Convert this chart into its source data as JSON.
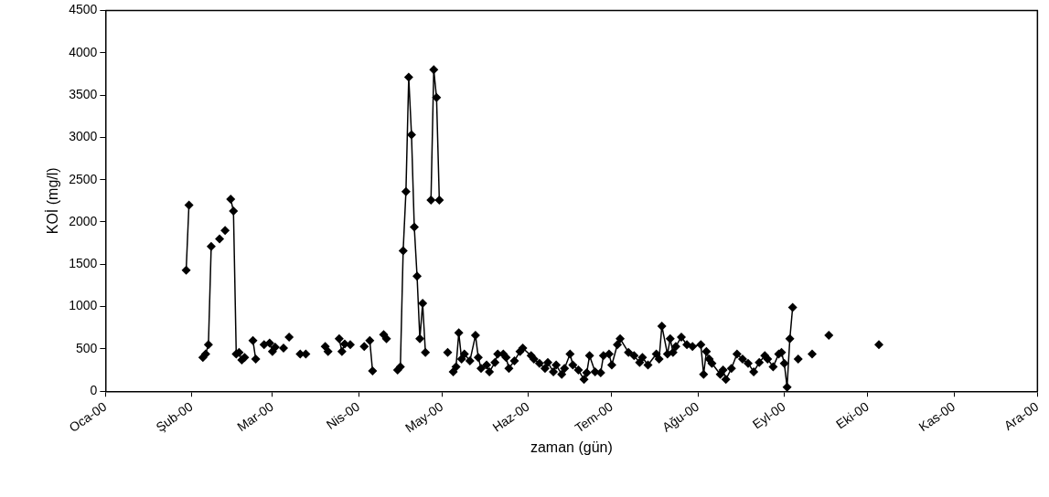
{
  "chart_data": {
    "type": "line",
    "xlabel": "zaman (gün)",
    "ylabel": "KOİ (mg/l)",
    "xlim": [
      "2000-01-01",
      "2000-12-01"
    ],
    "xticks": [
      {
        "value": "2000-01-01",
        "label": "Oca-00"
      },
      {
        "value": "2000-02-01",
        "label": "Şub-00"
      },
      {
        "value": "2000-03-01",
        "label": "Mar-00"
      },
      {
        "value": "2000-04-01",
        "label": "Nis-00"
      },
      {
        "value": "2000-05-01",
        "label": "May-00"
      },
      {
        "value": "2000-06-01",
        "label": "Haz-00"
      },
      {
        "value": "2000-07-01",
        "label": "Tem-00"
      },
      {
        "value": "2000-08-01",
        "label": "Ağu-00"
      },
      {
        "value": "2000-09-01",
        "label": "Eyl-00"
      },
      {
        "value": "2000-10-01",
        "label": "Eki-00"
      },
      {
        "value": "2000-11-01",
        "label": "Kas-00"
      },
      {
        "value": "2000-12-01",
        "label": "Ara-00"
      }
    ],
    "ylim": [
      0,
      4500
    ],
    "yticks": [
      0,
      500,
      1000,
      1500,
      2000,
      2500,
      3000,
      3500,
      4000,
      4500
    ],
    "grid": false,
    "legend": false,
    "marker": "diamond",
    "line_style": "solid",
    "series": [
      {
        "color": "#000000",
        "x": [
          "2000-01-30",
          "2000-01-31",
          "2000-02-02",
          "2000-02-05",
          "2000-02-06",
          "2000-02-07",
          "2000-02-08",
          "2000-02-09",
          "2000-02-11",
          "2000-02-12",
          "2000-02-13",
          "2000-02-14",
          "2000-02-15",
          "2000-02-16",
          "2000-02-17",
          "2000-02-18",
          "2000-02-19",
          "2000-02-20",
          "2000-02-21",
          "2000-02-23",
          "2000-02-24",
          "2000-02-25",
          "2000-02-27",
          "2000-02-28",
          "2000-02-29",
          "2000-03-01",
          "2000-03-02",
          "2000-03-03",
          "2000-03-05",
          "2000-03-06",
          "2000-03-07",
          "2000-03-09",
          "2000-03-11",
          "2000-03-12",
          "2000-03-13",
          "2000-03-15",
          "2000-03-20",
          "2000-03-21",
          "2000-03-23",
          "2000-03-25",
          "2000-03-26",
          "2000-03-27",
          "2000-03-28",
          "2000-03-29",
          "2000-03-31",
          "2000-04-03",
          "2000-04-04",
          "2000-04-05",
          "2000-04-06",
          "2000-04-08",
          "2000-04-10",
          "2000-04-11",
          "2000-04-13",
          "2000-04-15",
          "2000-04-16",
          "2000-04-17",
          "2000-04-18",
          "2000-04-19",
          "2000-04-20",
          "2000-04-21",
          "2000-04-22",
          "2000-04-23",
          "2000-04-24",
          "2000-04-25",
          "2000-04-26",
          "2000-04-27",
          "2000-04-28",
          "2000-04-29",
          "2000-04-30",
          "2000-05-01",
          "2000-05-03",
          "2000-05-04",
          "2000-05-05",
          "2000-05-06",
          "2000-05-07",
          "2000-05-08",
          "2000-05-09",
          "2000-05-11",
          "2000-05-13",
          "2000-05-14",
          "2000-05-15",
          "2000-05-17",
          "2000-05-18",
          "2000-05-20",
          "2000-05-21",
          "2000-05-23",
          "2000-05-24",
          "2000-05-25",
          "2000-05-27",
          "2000-05-29",
          "2000-05-30",
          "2000-06-02",
          "2000-06-03",
          "2000-06-05",
          "2000-06-07",
          "2000-06-08",
          "2000-06-10",
          "2000-06-11",
          "2000-06-13",
          "2000-06-14",
          "2000-06-16",
          "2000-06-17",
          "2000-06-19",
          "2000-06-21",
          "2000-06-22",
          "2000-06-23",
          "2000-06-25",
          "2000-06-27",
          "2000-06-28",
          "2000-06-30",
          "2000-07-01",
          "2000-07-03",
          "2000-07-04",
          "2000-07-07",
          "2000-07-09",
          "2000-07-11",
          "2000-07-12",
          "2000-07-14",
          "2000-07-17",
          "2000-07-18",
          "2000-07-19",
          "2000-07-21",
          "2000-07-22",
          "2000-07-23",
          "2000-07-24",
          "2000-07-26",
          "2000-07-28",
          "2000-07-30",
          "2000-08-02",
          "2000-08-03",
          "2000-08-04",
          "2000-08-05",
          "2000-08-06",
          "2000-08-09",
          "2000-08-10",
          "2000-08-11",
          "2000-08-13",
          "2000-08-15",
          "2000-08-17",
          "2000-08-19",
          "2000-08-21",
          "2000-08-23",
          "2000-08-25",
          "2000-08-26",
          "2000-08-28",
          "2000-08-30",
          "2000-08-31",
          "2000-09-01",
          "2000-09-02",
          "2000-09-03",
          "2000-09-04",
          "2000-09-05",
          "2000-09-06",
          "2000-09-08",
          "2000-09-11",
          "2000-09-14",
          "2000-09-17",
          "2000-09-25",
          "2000-10-05"
        ],
        "values": [
          1430,
          2200,
          null,
          400,
          440,
          550,
          1710,
          null,
          1800,
          null,
          1900,
          null,
          2270,
          2130,
          440,
          460,
          370,
          400,
          null,
          600,
          380,
          null,
          550,
          null,
          570,
          470,
          520,
          null,
          510,
          null,
          640,
          null,
          440,
          null,
          440,
          null,
          530,
          470,
          null,
          620,
          470,
          560,
          null,
          550,
          null,
          530,
          null,
          600,
          240,
          null,
          670,
          620,
          null,
          250,
          290,
          1660,
          2360,
          3710,
          3030,
          1940,
          1360,
          620,
          1040,
          460,
          null,
          2260,
          3800,
          3470,
          2260,
          null,
          460,
          null,
          230,
          290,
          690,
          380,
          440,
          360,
          660,
          400,
          270,
          310,
          230,
          340,
          440,
          440,
          400,
          270,
          360,
          470,
          510,
          420,
          380,
          330,
          270,
          340,
          230,
          310,
          200,
          270,
          440,
          310,
          250,
          140,
          220,
          420,
          230,
          220,
          420,
          440,
          310,
          550,
          620,
          460,
          420,
          340,
          400,
          310,
          440,
          380,
          770,
          440,
          620,
          460,
          530,
          640,
          550,
          530,
          550,
          200,
          470,
          380,
          330,
          200,
          250,
          140,
          270,
          440,
          380,
          330,
          230,
          340,
          420,
          380,
          290,
          440,
          460,
          330,
          50,
          620,
          990,
          null,
          380,
          null,
          440,
          null,
          660,
          null,
          550
        ]
      }
    ]
  }
}
